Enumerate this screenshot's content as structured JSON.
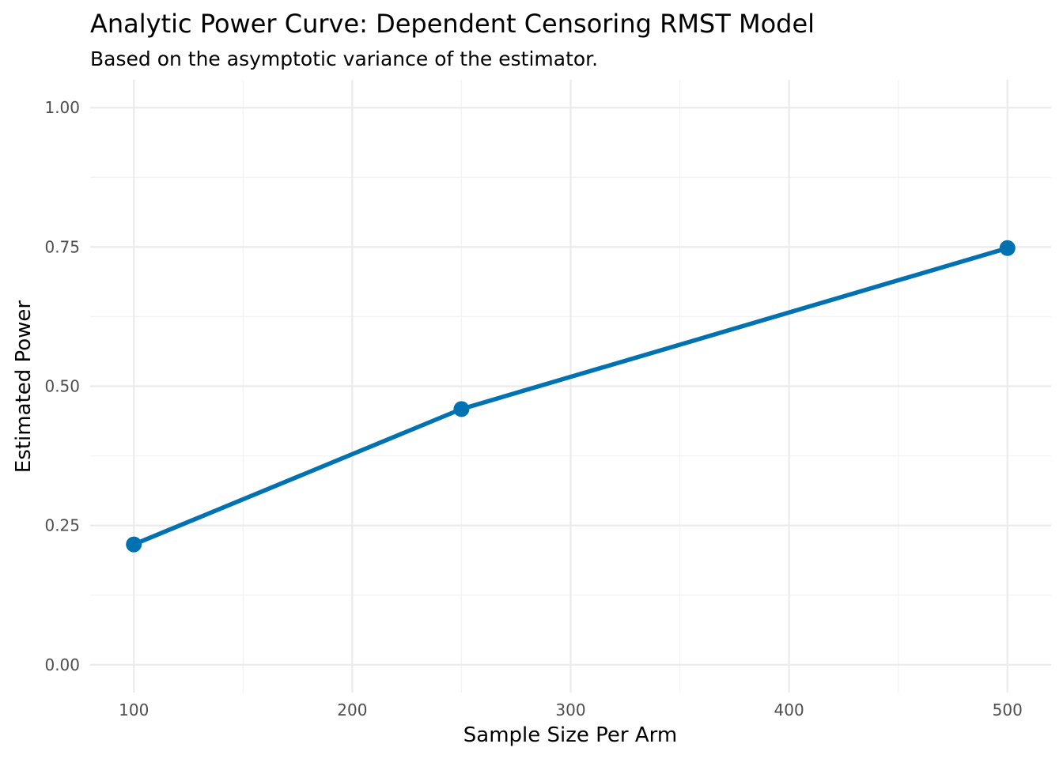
{
  "chart_data": {
    "type": "line",
    "title": "Analytic Power Curve: Dependent Censoring RMST Model",
    "subtitle": "Based on the asymptotic variance of the estimator.",
    "xlabel": "Sample Size Per Arm",
    "ylabel": "Estimated Power",
    "x_ticks": [
      100,
      200,
      300,
      400,
      500
    ],
    "x_tick_labels": [
      "100",
      "200",
      "300",
      "400",
      "500"
    ],
    "x_minor": [
      150,
      250,
      350,
      450
    ],
    "y_ticks": [
      0,
      0.25,
      0.5,
      0.75,
      1
    ],
    "y_tick_labels": [
      "0.00",
      "0.25",
      "0.50",
      "0.75",
      "1.00"
    ],
    "y_minor": [
      0.125,
      0.375,
      0.625,
      0.875
    ],
    "xlim": [
      80,
      520
    ],
    "ylim": [
      -0.05,
      1.05
    ],
    "grid": true,
    "legend": "none",
    "series": [
      {
        "color": "#0072B2",
        "x": [
          100,
          250,
          500
        ],
        "y": [
          0.216,
          0.459,
          0.748
        ]
      }
    ]
  }
}
